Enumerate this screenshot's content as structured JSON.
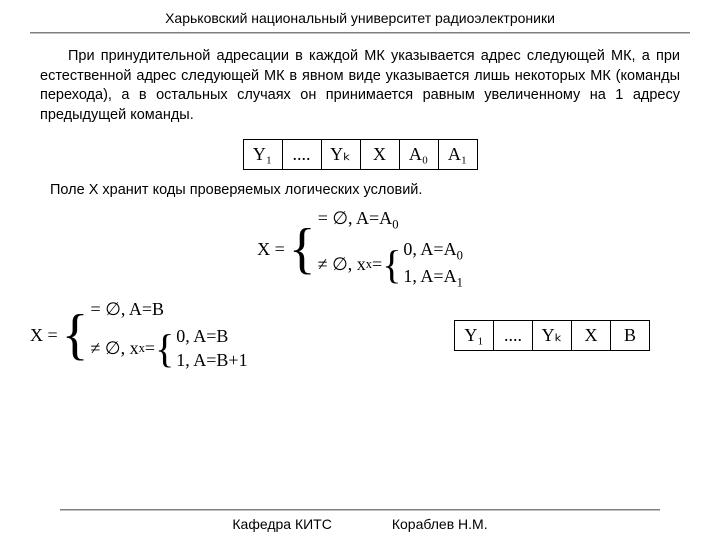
{
  "header": "Харьковский национальный университет радиоэлектроники",
  "paragraph1": "При принудительной адресации в каждой МК указывается адрес следующей МК, а при естественной адрес следующей МК в явном виде указывается лишь некоторых МК (команды перехода), а в остальных случаях он принимается равным увеличенному на 1 адресу предыдущей команды.",
  "table1": {
    "cells": [
      "Y₁",
      "....",
      "Yₖ",
      "X",
      "A₀",
      "A₁"
    ]
  },
  "paragraph2": "Поле Х хранит коды проверяемых логических условий.",
  "eq1": {
    "lhs": "X =",
    "case1": "= ∅,  A=A",
    "case1_sub": "0",
    "case2_left": "≠ ∅,  x",
    "case2_left_sub": "x",
    "case2_eq": " =",
    "inner1": "0, A=A",
    "inner1_sub": "0",
    "inner2": "1, A=A",
    "inner2_sub": "1"
  },
  "eq2": {
    "lhs": "X =",
    "case1": "= ∅,  A=B",
    "case2_left": "≠ ∅,  x",
    "case2_left_sub": "x",
    "case2_eq": " =",
    "inner1": "0, A=B",
    "inner2": "1, A=B+1"
  },
  "table2": {
    "cells": [
      "Y₁",
      "....",
      "Yₖ",
      "X",
      "B"
    ]
  },
  "footer_left": "Кафедра КИТС",
  "footer_right": "Кораблев Н.М."
}
